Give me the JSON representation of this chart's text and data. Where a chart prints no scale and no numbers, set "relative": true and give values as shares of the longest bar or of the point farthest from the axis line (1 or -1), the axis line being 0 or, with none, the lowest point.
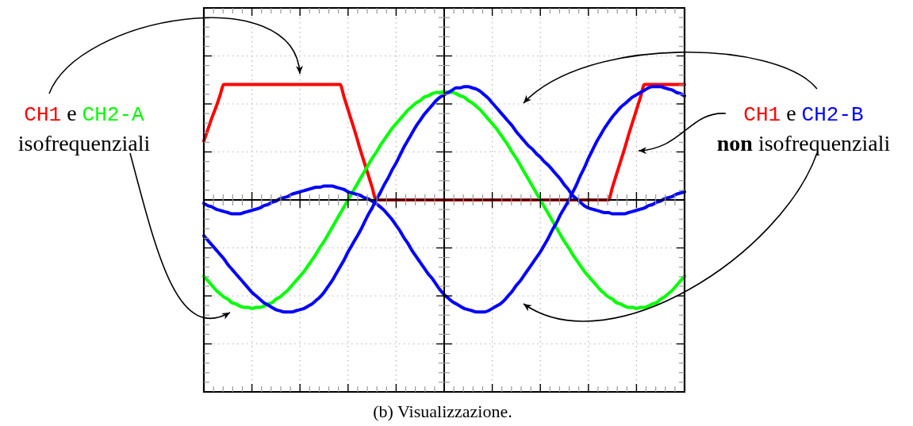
{
  "chart_data": {
    "type": "line",
    "relative": true,
    "grid": true,
    "marker": "none",
    "categories": [
      null,
      null,
      null,
      null,
      null,
      null,
      null,
      null,
      null,
      null,
      null,
      null,
      null,
      null,
      null,
      null,
      null,
      null,
      null,
      null,
      null,
      null,
      null,
      null,
      null,
      null,
      null,
      null,
      null,
      null,
      null,
      null,
      null,
      null,
      null,
      null,
      null,
      null,
      null,
      null,
      null,
      null,
      null,
      null,
      null,
      null,
      null,
      null,
      null,
      null,
      null,
      null,
      null,
      null,
      null,
      null,
      null,
      null,
      null,
      null,
      null,
      null,
      null,
      null,
      null,
      null,
      null,
      null,
      null,
      null,
      null,
      null,
      null,
      null,
      null,
      null,
      null,
      null,
      null,
      null,
      null,
      null,
      null,
      null,
      null,
      null,
      null,
      null,
      null,
      null,
      null,
      null,
      null,
      null,
      null,
      null,
      null,
      null,
      null,
      null,
      null,
      null,
      null,
      null,
      null,
      null,
      null,
      null,
      null,
      null,
      null,
      null,
      null,
      null,
      null,
      null,
      null,
      null,
      null,
      null,
      null
    ],
    "series": [
      {
        "name": "CH1",
        "color": "#ff0000",
        "values": [
          0.51,
          0.61,
          0.71,
          0.8,
          0.9,
          1,
          1,
          1,
          1,
          1,
          1,
          1,
          1,
          1,
          1,
          1,
          1,
          1,
          1,
          1,
          1,
          1,
          1,
          1,
          1,
          1,
          1,
          1,
          1,
          1,
          1,
          1,
          1,
          1,
          1,
          0.89,
          0.78,
          0.67,
          0.56,
          0.44,
          0.33,
          0.22,
          0.11,
          0,
          0,
          0,
          0,
          0,
          0,
          0,
          0,
          0,
          0,
          0,
          0,
          0,
          0,
          0,
          0,
          0,
          0,
          0,
          0,
          0,
          0,
          0,
          0,
          0,
          0,
          0,
          0,
          0,
          0,
          0,
          0,
          0,
          0,
          0,
          0,
          0,
          0,
          0,
          0,
          0,
          0,
          0,
          0,
          0,
          0,
          0,
          0,
          0,
          0,
          0,
          0,
          0,
          0,
          0,
          0,
          0,
          0,
          0,
          0.11,
          0.22,
          0.33,
          0.44,
          0.56,
          0.67,
          0.78,
          0.89,
          1,
          1,
          1,
          1,
          1,
          1,
          1,
          1,
          1,
          1,
          1
        ]
      },
      {
        "name": "CH2-A",
        "color": "#00ff00",
        "values": [
          -0.66,
          -0.7,
          -0.74,
          -0.78,
          -0.81,
          -0.84,
          -0.86,
          -0.89,
          -0.9,
          -0.92,
          -0.93,
          -0.93,
          -0.94,
          -0.93,
          -0.93,
          -0.92,
          -0.9,
          -0.89,
          -0.86,
          -0.84,
          -0.81,
          -0.78,
          -0.74,
          -0.7,
          -0.66,
          -0.62,
          -0.57,
          -0.52,
          -0.47,
          -0.41,
          -0.36,
          -0.3,
          -0.24,
          -0.18,
          -0.12,
          -0.06,
          0,
          0.06,
          0.12,
          0.18,
          0.24,
          0.3,
          0.36,
          0.41,
          0.47,
          0.52,
          0.57,
          0.62,
          0.66,
          0.7,
          0.74,
          0.78,
          0.81,
          0.84,
          0.86,
          0.89,
          0.9,
          0.92,
          0.93,
          0.93,
          0.94,
          0.93,
          0.93,
          0.92,
          0.9,
          0.89,
          0.86,
          0.84,
          0.81,
          0.78,
          0.74,
          0.7,
          0.66,
          0.62,
          0.57,
          0.52,
          0.47,
          0.41,
          0.36,
          0.3,
          0.24,
          0.18,
          0.12,
          0.06,
          0,
          -0.06,
          -0.12,
          -0.18,
          -0.24,
          -0.3,
          -0.36,
          -0.41,
          -0.47,
          -0.52,
          -0.57,
          -0.62,
          -0.66,
          -0.7,
          -0.74,
          -0.78,
          -0.81,
          -0.84,
          -0.86,
          -0.89,
          -0.9,
          -0.92,
          -0.93,
          -0.93,
          -0.94,
          -0.93,
          -0.93,
          -0.92,
          -0.9,
          -0.89,
          -0.86,
          -0.84,
          -0.81,
          -0.78,
          -0.74,
          -0.7,
          -0.66
        ]
      },
      {
        "name": "CH2-B",
        "color": "#0000ff",
        "values": [
          -0.03,
          -0.05,
          -0.06,
          -0.08,
          -0.09,
          -0.1,
          -0.11,
          -0.12,
          -0.12,
          -0.12,
          -0.11,
          -0.1,
          -0.09,
          -0.08,
          -0.07,
          -0.05,
          -0.04,
          -0.02,
          -0.01,
          0.01,
          0.02,
          0.03,
          0.05,
          0.06,
          0.07,
          0.08,
          0.09,
          0.1,
          0.11,
          0.11,
          0.12,
          0.12,
          0.12,
          0.11,
          0.1,
          0.09,
          0.07,
          0.06,
          0.05,
          0.04,
          0.02,
          0.01,
          -0.01,
          -0.03,
          -0.06,
          -0.09,
          -0.13,
          -0.17,
          -0.22,
          -0.27,
          -0.33,
          -0.38,
          -0.44,
          -0.49,
          -0.54,
          -0.59,
          -0.64,
          -0.68,
          -0.73,
          -0.78,
          -0.82,
          -0.85,
          -0.88,
          -0.9,
          -0.92,
          -0.94,
          -0.95,
          -0.96,
          -0.97,
          -0.97,
          -0.97,
          -0.96,
          -0.94,
          -0.92,
          -0.9,
          -0.87,
          -0.83,
          -0.79,
          -0.74,
          -0.7,
          -0.65,
          -0.6,
          -0.55,
          -0.5,
          -0.45,
          -0.39,
          -0.33,
          -0.26,
          -0.2,
          -0.13,
          -0.07,
          -0.01,
          0.06,
          0.13,
          0.21,
          0.28,
          0.36,
          0.43,
          0.5,
          0.56,
          0.62,
          0.67,
          0.72,
          0.76,
          0.8,
          0.83,
          0.86,
          0.89,
          0.91,
          0.93,
          0.95,
          0.97,
          0.98,
          0.98,
          0.98,
          0.97,
          0.96,
          0.95,
          0.93,
          0.92,
          0.9
        ]
      },
      {
        "color": "#0000ff",
        "values": [
          -0.31,
          -0.35,
          -0.39,
          -0.43,
          -0.47,
          -0.51,
          -0.56,
          -0.6,
          -0.64,
          -0.68,
          -0.72,
          -0.76,
          -0.8,
          -0.83,
          -0.86,
          -0.89,
          -0.91,
          -0.93,
          -0.95,
          -0.96,
          -0.97,
          -0.97,
          -0.97,
          -0.96,
          -0.95,
          -0.94,
          -0.92,
          -0.9,
          -0.87,
          -0.84,
          -0.8,
          -0.75,
          -0.7,
          -0.64,
          -0.58,
          -0.52,
          -0.45,
          -0.39,
          -0.33,
          -0.27,
          -0.2,
          -0.13,
          -0.07,
          0,
          0.06,
          0.13,
          0.19,
          0.26,
          0.32,
          0.39,
          0.46,
          0.52,
          0.58,
          0.64,
          0.69,
          0.74,
          0.78,
          0.82,
          0.86,
          0.89,
          0.91,
          0.93,
          0.95,
          0.97,
          0.97,
          0.98,
          0.98,
          0.97,
          0.96,
          0.94,
          0.91,
          0.88,
          0.84,
          0.8,
          0.76,
          0.72,
          0.68,
          0.64,
          0.59,
          0.55,
          0.51,
          0.47,
          0.44,
          0.4,
          0.37,
          0.33,
          0.3,
          0.26,
          0.22,
          0.18,
          0.13,
          0.09,
          0.04,
          0.01,
          -0.02,
          -0.05,
          -0.07,
          -0.08,
          -0.09,
          -0.1,
          -0.11,
          -0.11,
          -0.12,
          -0.12,
          -0.12,
          -0.12,
          -0.11,
          -0.1,
          -0.09,
          -0.08,
          -0.07,
          -0.05,
          -0.04,
          -0.02,
          -0.01,
          0.01,
          0.02,
          0.03,
          0.05,
          0.06,
          0.07
        ]
      }
    ],
    "annotations": [
      "e",
      "isofrequenziali",
      "e",
      "non",
      "isofrequenziali",
      "(b) Visualizzazione."
    ]
  }
}
